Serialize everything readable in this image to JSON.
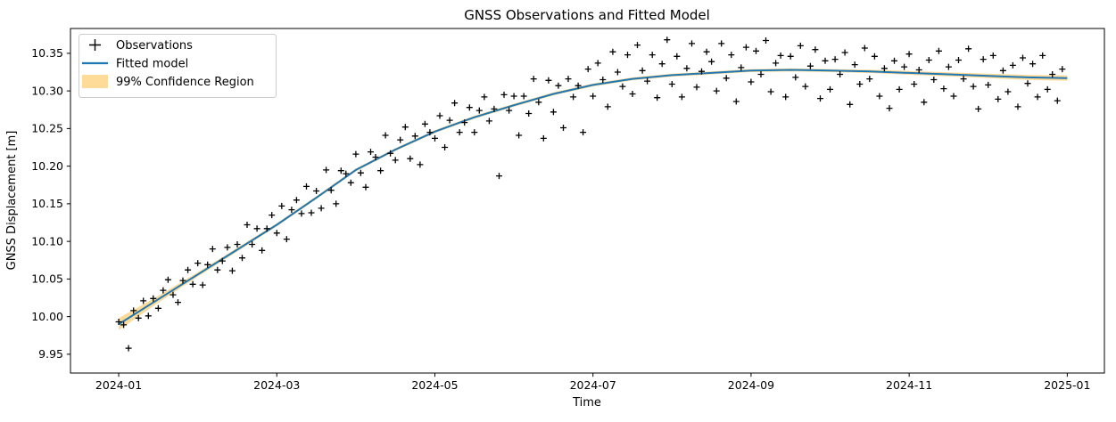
{
  "chart_data": {
    "type": "scatter",
    "title": "GNSS Observations and Fitted Model",
    "xlabel": "Time",
    "ylabel": "GNSS Displacement [m]",
    "grid": false,
    "x_axis": {
      "unit": "months since 2024-01",
      "range": [
        -0.61,
        12.47
      ],
      "ticks": [
        {
          "t": 0,
          "label": "2024-01"
        },
        {
          "t": 2,
          "label": "2024-03"
        },
        {
          "t": 4,
          "label": "2024-05"
        },
        {
          "t": 6,
          "label": "2024-07"
        },
        {
          "t": 8,
          "label": "2024-09"
        },
        {
          "t": 10,
          "label": "2024-11"
        },
        {
          "t": 12,
          "label": "2025-01"
        }
      ]
    },
    "y_axis": {
      "range": [
        9.925,
        10.383
      ],
      "ticks": [
        {
          "v": 9.95,
          "label": "9.95"
        },
        {
          "v": 10.0,
          "label": "10.00"
        },
        {
          "v": 10.05,
          "label": "10.05"
        },
        {
          "v": 10.1,
          "label": "10.10"
        },
        {
          "v": 10.15,
          "label": "10.15"
        },
        {
          "v": 10.2,
          "label": "10.20"
        },
        {
          "v": 10.25,
          "label": "10.25"
        },
        {
          "v": 10.3,
          "label": "10.30"
        },
        {
          "v": 10.35,
          "label": "10.35"
        }
      ]
    },
    "legend": {
      "position": "upper left",
      "entries": [
        {
          "symbol": "plus",
          "label": "Observations"
        },
        {
          "symbol": "line",
          "label": "Fitted model"
        },
        {
          "symbol": "patch",
          "label": "99% Confidence Region"
        }
      ]
    },
    "colors": {
      "fitted_line": "#1f77b4",
      "confidence_band": "#ffa500",
      "confidence_band_opacity": 0.4,
      "observation_marker": "#000000",
      "axes_frame": "#000000",
      "legend_border": "#cccccc"
    },
    "fitted_model": {
      "t": [
        0,
        0.5,
        1,
        1.5,
        2,
        2.5,
        3,
        3.5,
        4,
        4.5,
        5,
        5.5,
        6,
        6.5,
        7,
        7.5,
        8,
        8.5,
        9,
        9.5,
        10,
        10.5,
        11,
        11.5,
        12
      ],
      "values": [
        9.99,
        10.023,
        10.056,
        10.089,
        10.122,
        10.158,
        10.195,
        10.222,
        10.246,
        10.265,
        10.281,
        10.296,
        10.308,
        10.316,
        10.321,
        10.324,
        10.327,
        10.328,
        10.327,
        10.326,
        10.324,
        10.322,
        10.32,
        10.318,
        10.317
      ]
    },
    "confidence_band": {
      "t": [
        0,
        0.5,
        1,
        1.5,
        2,
        2.5,
        3,
        3.5,
        4,
        4.5,
        5,
        5.5,
        6,
        6.5,
        7,
        7.5,
        8,
        8.5,
        9,
        9.5,
        10,
        10.5,
        11,
        11.5,
        12
      ],
      "half_width": [
        0.008,
        0.0045,
        0.003,
        0.0025,
        0.002,
        0.002,
        0.002,
        0.002,
        0.002,
        0.002,
        0.002,
        0.002,
        0.002,
        0.002,
        0.002,
        0.002,
        0.002,
        0.002,
        0.002,
        0.0022,
        0.0025,
        0.0027,
        0.003,
        0.0033,
        0.0036
      ]
    },
    "observations": {
      "t_start": 0,
      "t_step": 0.0625,
      "values": [
        9.993,
        9.989,
        9.958,
        10.008,
        9.998,
        10.021,
        10.001,
        10.024,
        10.011,
        10.035,
        10.049,
        10.029,
        10.019,
        10.048,
        10.062,
        10.043,
        10.071,
        10.042,
        10.069,
        10.09,
        10.062,
        10.074,
        10.092,
        10.061,
        10.096,
        10.078,
        10.122,
        10.096,
        10.117,
        10.088,
        10.117,
        10.135,
        10.111,
        10.147,
        10.103,
        10.142,
        10.155,
        10.137,
        10.173,
        10.138,
        10.167,
        10.144,
        10.195,
        10.168,
        10.15,
        10.194,
        10.19,
        10.178,
        10.216,
        10.191,
        10.172,
        10.219,
        10.212,
        10.194,
        10.241,
        10.217,
        10.208,
        10.235,
        10.252,
        10.21,
        10.24,
        10.202,
        10.256,
        10.245,
        10.237,
        10.267,
        10.225,
        10.261,
        10.284,
        10.245,
        10.258,
        10.278,
        10.245,
        10.274,
        10.292,
        10.26,
        10.276,
        10.187,
        10.295,
        10.274,
        10.293,
        10.241,
        10.293,
        10.27,
        10.316,
        10.285,
        10.237,
        10.314,
        10.272,
        10.307,
        10.251,
        10.316,
        10.292,
        10.307,
        10.245,
        10.329,
        10.293,
        10.337,
        10.315,
        10.279,
        10.352,
        10.325,
        10.306,
        10.348,
        10.296,
        10.361,
        10.327,
        10.313,
        10.348,
        10.291,
        10.336,
        10.368,
        10.309,
        10.346,
        10.292,
        10.33,
        10.363,
        10.305,
        10.326,
        10.352,
        10.339,
        10.3,
        10.363,
        10.317,
        10.348,
        10.286,
        10.331,
        10.358,
        10.312,
        10.353,
        10.322,
        10.367,
        10.299,
        10.337,
        10.347,
        10.292,
        10.346,
        10.318,
        10.36,
        10.306,
        10.333,
        10.355,
        10.29,
        10.34,
        10.302,
        10.342,
        10.322,
        10.351,
        10.282,
        10.335,
        10.309,
        10.357,
        10.316,
        10.346,
        10.293,
        10.33,
        10.277,
        10.34,
        10.302,
        10.332,
        10.349,
        10.309,
        10.328,
        10.285,
        10.341,
        10.315,
        10.353,
        10.303,
        10.332,
        10.293,
        10.341,
        10.316,
        10.356,
        10.306,
        10.276,
        10.342,
        10.308,
        10.347,
        10.289,
        10.327,
        10.299,
        10.334,
        10.279,
        10.344,
        10.31,
        10.336,
        10.292,
        10.347,
        10.302,
        10.322,
        10.287,
        10.329
      ]
    }
  }
}
